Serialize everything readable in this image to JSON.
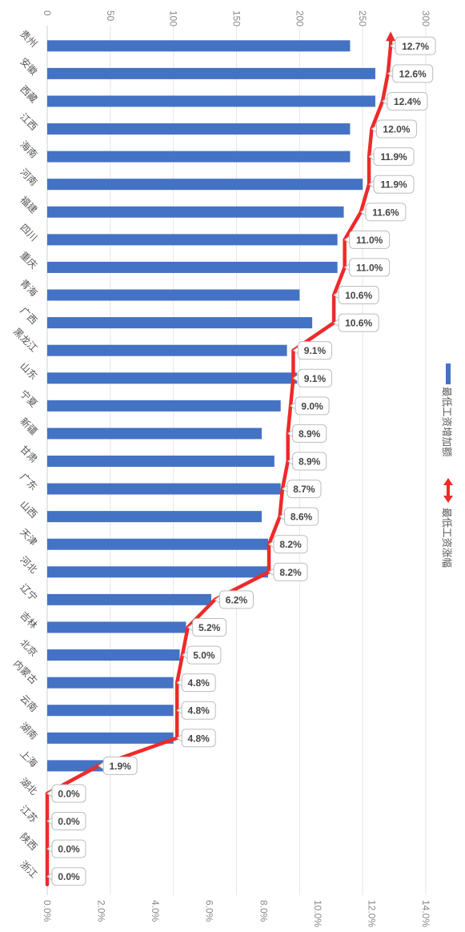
{
  "chart_data": {
    "type": "bar",
    "orientation": "horizontal",
    "rotated_view": "90deg-clockwise",
    "categories": [
      "贵州",
      "安徽",
      "西藏",
      "江西",
      "海南",
      "河南",
      "福建",
      "四川",
      "重庆",
      "青海",
      "广西",
      "黑龙江",
      "山东",
      "宁夏",
      "新疆",
      "甘肃",
      "广东",
      "山西",
      "天津",
      "河北",
      "辽宁",
      "吉林",
      "北京",
      "内蒙古",
      "云南",
      "湖南",
      "上海",
      "湖北",
      "江苏",
      "陕西",
      "浙江"
    ],
    "series": [
      {
        "name": "最低工资增加额",
        "type": "bar",
        "axis": "primary",
        "color": "#4472C4",
        "values": [
          240,
          260,
          260,
          240,
          240,
          250,
          235,
          230,
          230,
          200,
          210,
          190,
          198,
          185,
          170,
          180,
          185,
          170,
          175,
          175,
          130,
          110,
          105,
          100,
          100,
          100,
          45,
          0,
          0,
          0,
          0
        ]
      },
      {
        "name": "最低工资涨幅",
        "type": "line",
        "axis": "secondary",
        "color": "#EE2A2A",
        "values": [
          12.7,
          12.6,
          12.4,
          12.0,
          11.9,
          11.9,
          11.6,
          11.0,
          11.0,
          10.6,
          10.6,
          9.1,
          9.1,
          9.0,
          8.9,
          8.9,
          8.7,
          8.6,
          8.2,
          8.2,
          6.2,
          5.2,
          5.0,
          4.8,
          4.8,
          4.8,
          1.9,
          0.0,
          0.0,
          0.0,
          0.0
        ],
        "data_labels": [
          "12.7%",
          "12.6%",
          "12.4%",
          "12.0%",
          "11.9%",
          "11.9%",
          "11.6%",
          "11.0%",
          "11.0%",
          "10.6%",
          "10.6%",
          "9.1%",
          "9.1%",
          "9.0%",
          "8.9%",
          "8.9%",
          "8.7%",
          "8.6%",
          "8.2%",
          "8.2%",
          "6.2%",
          "5.2%",
          "5.0%",
          "4.8%",
          "4.8%",
          "4.8%",
          "1.9%",
          "0.0%",
          "0.0%",
          "0.0%",
          "0.0%"
        ]
      }
    ],
    "primary_axis": {
      "range": [
        0,
        300
      ],
      "tick_labels": [
        "0",
        "50",
        "100",
        "150",
        "200",
        "250",
        "300"
      ]
    },
    "secondary_axis": {
      "range": [
        0,
        14
      ],
      "tick_labels": [
        "0.0%",
        "2.0%",
        "4.0%",
        "6.0%",
        "8.0%",
        "10.0%",
        "12.0%",
        "14.0%"
      ]
    },
    "grid": true,
    "legend_placement": "right"
  }
}
